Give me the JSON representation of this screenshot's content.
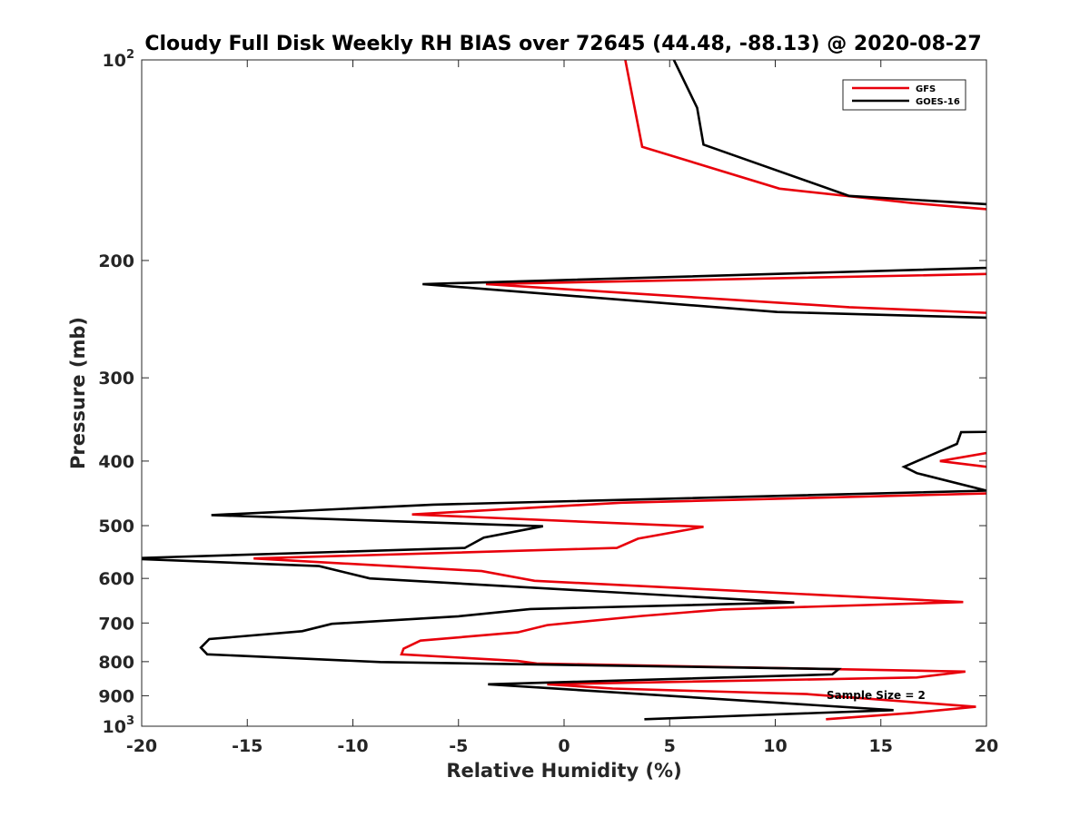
{
  "chart_data": {
    "type": "line",
    "title": "Cloudy Full Disk Weekly RH BIAS over 72645 (44.48, -88.13) @ 2020-08-27",
    "xlabel": "Relative Humidity (%)",
    "ylabel": "Pressure (mb)",
    "xlim": [
      -20,
      20
    ],
    "ylim": [
      100,
      1000
    ],
    "yscale": "log",
    "y_reversed": true,
    "grid": false,
    "legend_position": "top-right",
    "x_ticks": [
      "-20",
      "-15",
      "-10",
      "-5",
      "0",
      "5",
      "10",
      "15",
      "20"
    ],
    "y_ticks": [
      {
        "value": 100,
        "label": "10",
        "sup": "2"
      },
      {
        "value": 200,
        "label": "200",
        "sup": ""
      },
      {
        "value": 300,
        "label": "300",
        "sup": ""
      },
      {
        "value": 400,
        "label": "400",
        "sup": ""
      },
      {
        "value": 500,
        "label": "500",
        "sup": ""
      },
      {
        "value": 600,
        "label": "600",
        "sup": ""
      },
      {
        "value": 700,
        "label": "700",
        "sup": ""
      },
      {
        "value": 800,
        "label": "800",
        "sup": ""
      },
      {
        "value": 900,
        "label": "900",
        "sup": ""
      },
      {
        "value": 1000,
        "label": "10",
        "sup": "3"
      }
    ],
    "annotation": "Sample Size = 2",
    "series": [
      {
        "name": "GFS",
        "color": "#e8000b",
        "points": [
          [
            2.9,
            100
          ],
          [
            3.7,
            135
          ],
          [
            10.2,
            156
          ],
          [
            16.5,
            164
          ],
          [
            20.5,
            168
          ],
          [
            null,
            null
          ],
          [
            25,
            208
          ],
          [
            -3.7,
            217
          ],
          [
            13.5,
            235
          ],
          [
            20.5,
            240
          ],
          [
            null,
            null
          ],
          [
            25,
            378
          ],
          [
            20,
            389
          ],
          [
            17.8,
            400
          ],
          [
            20,
            408
          ],
          [
            null,
            null
          ],
          [
            20.5,
            447
          ],
          [
            2.7,
            462
          ],
          [
            -7.2,
            481
          ],
          [
            6.6,
            502
          ],
          [
            3.5,
            523
          ],
          [
            2.5,
            540
          ],
          [
            -14.7,
            560
          ],
          [
            -3.9,
            585
          ],
          [
            -1.4,
            605
          ],
          [
            18.9,
            651
          ],
          [
            7.5,
            668
          ],
          [
            3.7,
            683
          ],
          [
            -0.8,
            705
          ],
          [
            -2.2,
            723
          ],
          [
            -6.8,
            744
          ],
          [
            -7.6,
            765
          ],
          [
            -7.7,
            780
          ],
          [
            -2.2,
            798
          ],
          [
            -1.3,
            805
          ],
          [
            19.0,
            828
          ],
          [
            16.7,
            845
          ],
          [
            -0.8,
            865
          ],
          [
            2.3,
            878
          ],
          [
            11.5,
            895
          ],
          [
            19.5,
            935
          ],
          [
            16.5,
            955
          ],
          [
            12.4,
            976
          ]
        ]
      },
      {
        "name": "GOES-16",
        "color": "#000000",
        "points": [
          [
            5.2,
            100
          ],
          [
            6.3,
            118
          ],
          [
            6.6,
            134
          ],
          [
            13.5,
            160
          ],
          [
            20.5,
            165
          ],
          [
            null,
            null
          ],
          [
            25,
            203
          ],
          [
            -6.7,
            217
          ],
          [
            10.1,
            239
          ],
          [
            20.5,
            244
          ],
          [
            null,
            null
          ],
          [
            25,
            360
          ],
          [
            18.8,
            362
          ],
          [
            18.6,
            377
          ],
          [
            16.1,
            408
          ],
          [
            16.7,
            417
          ],
          [
            20,
            443
          ],
          [
            -6.2,
            465
          ],
          [
            -16.7,
            482
          ],
          [
            -1.0,
            501
          ],
          [
            -3.8,
            521
          ],
          [
            -4.7,
            540
          ],
          [
            -20.8,
            560
          ],
          [
            -11.6,
            575
          ],
          [
            -9.2,
            600
          ],
          [
            10.9,
            652
          ],
          [
            -1.6,
            667
          ],
          [
            -5.0,
            684
          ],
          [
            -11.0,
            702
          ],
          [
            -12.4,
            720
          ],
          [
            -16.8,
            740
          ],
          [
            -17.2,
            762
          ],
          [
            -16.9,
            780
          ],
          [
            -8.7,
            801
          ],
          [
            13.0,
            821
          ],
          [
            12.7,
            836
          ],
          [
            -3.6,
            865
          ],
          [
            15.6,
            946
          ],
          [
            3.8,
            976
          ]
        ]
      }
    ]
  }
}
